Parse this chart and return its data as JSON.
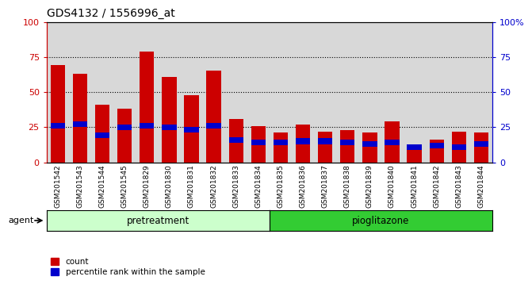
{
  "title": "GDS4132 / 1556996_at",
  "samples": [
    "GSM201542",
    "GSM201543",
    "GSM201544",
    "GSM201545",
    "GSM201829",
    "GSM201830",
    "GSM201831",
    "GSM201832",
    "GSM201833",
    "GSM201834",
    "GSM201835",
    "GSM201836",
    "GSM201837",
    "GSM201838",
    "GSM201839",
    "GSM201840",
    "GSM201841",
    "GSM201842",
    "GSM201843",
    "GSM201844"
  ],
  "count_values": [
    69,
    63,
    41,
    38,
    79,
    61,
    48,
    65,
    31,
    26,
    21,
    27,
    22,
    23,
    21,
    29,
    13,
    16,
    22,
    21
  ],
  "percentile_values": [
    26,
    27,
    19,
    25,
    26,
    25,
    23,
    26,
    16,
    14,
    14,
    15,
    15,
    14,
    13,
    14,
    11,
    12,
    11,
    13
  ],
  "pretreatment_count": 10,
  "pioglitazone_count": 10,
  "pretreatment_label": "pretreatment",
  "pioglitazone_label": "pioglitazone",
  "agent_label": "agent",
  "count_color": "#cc0000",
  "percentile_color": "#0000cc",
  "pretreatment_bg": "#ccffcc",
  "pioglitazone_bg": "#33cc33",
  "plot_bg": "#d8d8d8",
  "ylim": [
    0,
    100
  ],
  "yticks": [
    0,
    25,
    50,
    75,
    100
  ],
  "grid_values": [
    25,
    50,
    75
  ],
  "legend_count": "count",
  "legend_percentile": "percentile rank within the sample",
  "bar_width": 0.65,
  "title_fontsize": 10,
  "tick_fontsize": 6.5,
  "agent_fontsize": 8,
  "label_fontsize": 8.5,
  "right_ytick_labels": [
    "0",
    "25",
    "50",
    "75",
    "100%"
  ]
}
